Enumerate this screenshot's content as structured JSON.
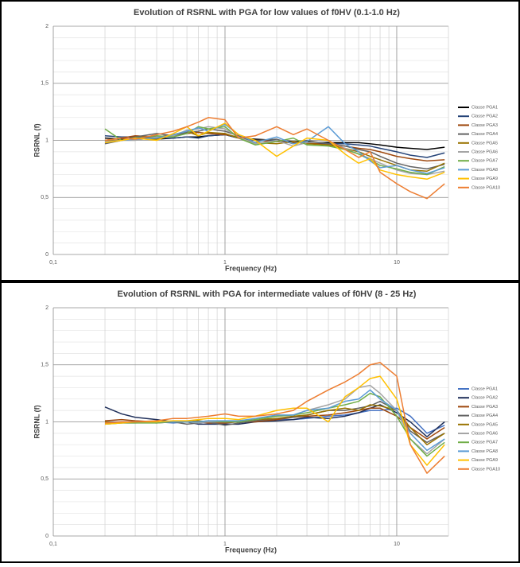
{
  "chart_data": [
    {
      "type": "line",
      "title": "Evolution of RSRNL with PGA for low values of f0HV (0.1-1.0 Hz)",
      "xlabel": "Frequency (Hz)",
      "ylabel": "RSRNL (f)",
      "xscale": "log",
      "xlim": [
        0.1,
        20
      ],
      "ylim": [
        0,
        2
      ],
      "xticks": [
        {
          "value": 0.1,
          "label": "0,1"
        },
        1,
        10
      ],
      "yticks": [
        0,
        {
          "value": 0.5,
          "label": "0,5"
        },
        1,
        {
          "value": 1.5,
          "label": "1,5"
        },
        2
      ],
      "xminor": [
        0.2,
        0.3,
        0.4,
        0.5,
        0.6,
        0.7,
        0.8,
        0.9,
        2,
        3,
        4,
        5,
        6,
        7,
        8,
        9
      ],
      "yminor": [
        0.1,
        0.2,
        0.3,
        0.4,
        0.6,
        0.7,
        0.8,
        0.9,
        1.1,
        1.2,
        1.3,
        1.4,
        1.6,
        1.7,
        1.8,
        1.9
      ],
      "grid": true,
      "legend": "right",
      "x": [
        0.2,
        0.25,
        0.3,
        0.4,
        0.5,
        0.6,
        0.7,
        0.8,
        1,
        1.2,
        1.5,
        2,
        2.5,
        3,
        4,
        5,
        6,
        7,
        8,
        10,
        12,
        15,
        19
      ],
      "series": [
        {
          "name": "Classe PGA1",
          "color": "#000000",
          "values": [
            1.02,
            1.01,
            1.02,
            1.01,
            1.02,
            1.03,
            1.03,
            1.04,
            1.05,
            1.02,
            1.01,
            1.0,
            0.99,
            0.99,
            0.98,
            0.98,
            0.98,
            0.97,
            0.96,
            0.94,
            0.93,
            0.92,
            0.94
          ]
        },
        {
          "name": "Classe PGA2",
          "color": "#264478",
          "values": [
            1.04,
            1.03,
            1.03,
            1.02,
            1.02,
            1.03,
            1.02,
            1.04,
            1.05,
            1.02,
            1.0,
            1.0,
            0.98,
            0.98,
            0.97,
            0.97,
            0.96,
            0.95,
            0.93,
            0.9,
            0.87,
            0.85,
            0.89
          ]
        },
        {
          "name": "Classe PGA3",
          "color": "#9e480e",
          "values": [
            1.0,
            1.02,
            1.04,
            1.03,
            1.05,
            1.06,
            1.07,
            1.06,
            1.05,
            1.03,
            1.0,
            0.99,
            0.98,
            0.98,
            0.96,
            0.95,
            0.93,
            0.92,
            0.9,
            0.86,
            0.84,
            0.82,
            0.83
          ]
        },
        {
          "name": "Classe PGA4",
          "color": "#636363",
          "values": [
            0.97,
            1.0,
            1.03,
            1.06,
            1.04,
            1.07,
            1.08,
            1.1,
            1.08,
            1.04,
            1.0,
            1.01,
            0.97,
            1.0,
            0.97,
            0.95,
            0.92,
            0.9,
            0.86,
            0.8,
            0.77,
            0.75,
            0.79
          ]
        },
        {
          "name": "Classe PGA5",
          "color": "#997300",
          "values": [
            1.0,
            1.0,
            1.02,
            1.01,
            1.05,
            1.08,
            1.04,
            1.07,
            1.06,
            1.02,
            0.98,
            0.97,
            0.99,
            0.97,
            0.96,
            0.93,
            0.9,
            0.86,
            0.83,
            0.78,
            0.74,
            0.73,
            0.8
          ]
        },
        {
          "name": "Classe PGA6",
          "color": "#a5a5a5",
          "values": [
            0.99,
            1.0,
            1.0,
            1.03,
            1.04,
            1.09,
            1.1,
            1.12,
            1.1,
            1.03,
            0.97,
            1.0,
            0.95,
            0.98,
            0.99,
            0.93,
            0.88,
            0.84,
            0.8,
            0.74,
            0.71,
            0.7,
            0.73
          ]
        },
        {
          "name": "Classe PGA7",
          "color": "#70ad47",
          "values": [
            1.1,
            1.0,
            1.02,
            1.04,
            1.03,
            1.06,
            1.12,
            1.1,
            1.12,
            1.02,
            0.96,
            0.99,
            1.02,
            0.96,
            0.95,
            0.92,
            0.88,
            0.83,
            0.78,
            0.75,
            0.72,
            0.7,
            0.77
          ]
        },
        {
          "name": "Classe PGA8",
          "color": "#5b9bd5",
          "values": [
            0.98,
            1.0,
            1.01,
            1.02,
            1.05,
            1.08,
            1.11,
            1.08,
            1.14,
            1.05,
            0.98,
            1.03,
            0.97,
            0.99,
            1.12,
            0.97,
            0.9,
            0.82,
            0.76,
            0.78,
            0.74,
            0.71,
            0.76
          ]
        },
        {
          "name": "Classe PGA9",
          "color": "#ffc000",
          "values": [
            0.98,
            1.0,
            1.02,
            1.0,
            1.06,
            1.12,
            1.04,
            1.08,
            1.15,
            1.05,
            1.0,
            0.86,
            0.95,
            1.02,
            1.0,
            0.88,
            0.8,
            0.84,
            0.74,
            0.7,
            0.68,
            0.66,
            0.72
          ]
        },
        {
          "name": "Classe PGA10",
          "color": "#ed7d31",
          "values": [
            1.0,
            1.02,
            1.01,
            1.05,
            1.08,
            1.12,
            1.16,
            1.2,
            1.18,
            1.02,
            1.04,
            1.12,
            1.05,
            1.1,
            1.0,
            0.92,
            0.85,
            0.9,
            0.72,
            0.62,
            0.55,
            0.49,
            0.62
          ]
        }
      ]
    },
    {
      "type": "line",
      "title": "Evolution of RSRNL with PGA for intermediate values of f0HV (8 - 25 Hz)",
      "xlabel": "Frequency (Hz)",
      "ylabel": "RSRNL (f)",
      "xscale": "log",
      "xlim": [
        0.1,
        20
      ],
      "ylim": [
        0,
        2
      ],
      "xticks": [
        {
          "value": 0.1,
          "label": "0,1"
        },
        1,
        10
      ],
      "yticks": [
        0,
        {
          "value": 0.5,
          "label": "0,5"
        },
        1,
        {
          "value": 1.5,
          "label": "1,5"
        },
        2
      ],
      "xminor": [
        0.2,
        0.3,
        0.4,
        0.5,
        0.6,
        0.7,
        0.8,
        0.9,
        2,
        3,
        4,
        5,
        6,
        7,
        8,
        9
      ],
      "yminor": [
        0.1,
        0.2,
        0.3,
        0.4,
        0.6,
        0.7,
        0.8,
        0.9,
        1.1,
        1.2,
        1.3,
        1.4,
        1.6,
        1.7,
        1.8,
        1.9
      ],
      "grid": true,
      "legend": "right",
      "x": [
        0.2,
        0.25,
        0.3,
        0.4,
        0.5,
        0.6,
        0.7,
        0.8,
        1,
        1.2,
        1.5,
        2,
        2.5,
        3,
        4,
        5,
        6,
        7,
        8,
        10,
        12,
        15,
        19
      ],
      "series": [
        {
          "name": "Classe PGA1",
          "color": "#4472c4",
          "values": [
            1.0,
            1.0,
            1.0,
            1.0,
            0.99,
            1.0,
            1.0,
            1.0,
            1.0,
            1.0,
            1.01,
            1.02,
            1.02,
            1.03,
            1.05,
            1.06,
            1.08,
            1.1,
            1.1,
            1.12,
            1.05,
            0.9,
            0.97
          ]
        },
        {
          "name": "Classe PGA2",
          "color": "#1f2f5a",
          "values": [
            1.13,
            1.07,
            1.04,
            1.02,
            1.0,
            1.0,
            0.98,
            0.98,
            0.98,
            0.98,
            1.0,
            1.01,
            1.02,
            1.04,
            1.03,
            1.05,
            1.08,
            1.12,
            1.15,
            1.08,
            1.0,
            0.87,
            1.0
          ]
        },
        {
          "name": "Classe PGA3",
          "color": "#9e480e",
          "values": [
            1.01,
            1.02,
            1.01,
            1.0,
            1.0,
            1.0,
            1.0,
            0.99,
            0.99,
            1.0,
            1.0,
            1.02,
            1.04,
            1.05,
            1.06,
            1.08,
            1.1,
            1.12,
            1.12,
            1.05,
            0.95,
            0.85,
            0.95
          ]
        },
        {
          "name": "Classe PGA4",
          "color": "#636363",
          "values": [
            0.99,
            1.0,
            1.0,
            0.99,
            1.0,
            0.98,
            0.99,
            1.0,
            0.97,
            0.99,
            1.01,
            1.03,
            1.04,
            1.06,
            1.1,
            1.1,
            1.12,
            1.14,
            1.18,
            1.1,
            0.92,
            0.82,
            0.9
          ]
        },
        {
          "name": "Classe PGA5",
          "color": "#997300",
          "values": [
            1.0,
            0.99,
            1.0,
            1.0,
            1.0,
            1.0,
            1.01,
            1.0,
            1.0,
            1.0,
            1.02,
            1.03,
            1.05,
            1.06,
            1.1,
            1.12,
            1.1,
            1.15,
            1.14,
            1.1,
            0.95,
            0.8,
            0.9
          ]
        },
        {
          "name": "Classe PGA6",
          "color": "#a5a5a5",
          "values": [
            0.98,
            0.99,
            0.99,
            1.0,
            1.0,
            1.0,
            0.99,
            1.0,
            1.0,
            1.0,
            1.02,
            1.05,
            1.06,
            1.1,
            1.15,
            1.2,
            1.3,
            1.32,
            1.25,
            1.1,
            0.85,
            0.72,
            0.85
          ]
        },
        {
          "name": "Classe PGA7",
          "color": "#70ad47",
          "values": [
            0.98,
            0.99,
            0.99,
            0.99,
            1.0,
            1.0,
            1.0,
            1.01,
            1.0,
            1.0,
            1.02,
            1.05,
            1.06,
            1.08,
            1.12,
            1.15,
            1.18,
            1.25,
            1.22,
            1.05,
            0.85,
            0.7,
            0.82
          ]
        },
        {
          "name": "Classe PGA8",
          "color": "#5b9bd5",
          "values": [
            0.99,
            1.0,
            1.0,
            1.0,
            1.0,
            1.0,
            1.0,
            1.01,
            1.01,
            1.01,
            1.03,
            1.06,
            1.06,
            1.1,
            1.12,
            1.18,
            1.2,
            1.28,
            1.2,
            1.1,
            0.9,
            0.75,
            0.85
          ]
        },
        {
          "name": "Classe PGA9",
          "color": "#ffc000",
          "values": [
            0.98,
            0.99,
            1.0,
            1.0,
            1.01,
            1.01,
            1.02,
            1.03,
            1.03,
            1.02,
            1.05,
            1.1,
            1.12,
            1.12,
            1.0,
            1.22,
            1.3,
            1.38,
            1.4,
            1.2,
            0.8,
            0.62,
            0.8
          ]
        },
        {
          "name": "Classe PGA10",
          "color": "#ed7d31",
          "values": [
            0.99,
            1.0,
            1.0,
            1.01,
            1.03,
            1.03,
            1.04,
            1.05,
            1.07,
            1.05,
            1.05,
            1.07,
            1.1,
            1.18,
            1.28,
            1.35,
            1.42,
            1.5,
            1.52,
            1.4,
            0.8,
            0.55,
            0.7
          ]
        }
      ]
    }
  ]
}
